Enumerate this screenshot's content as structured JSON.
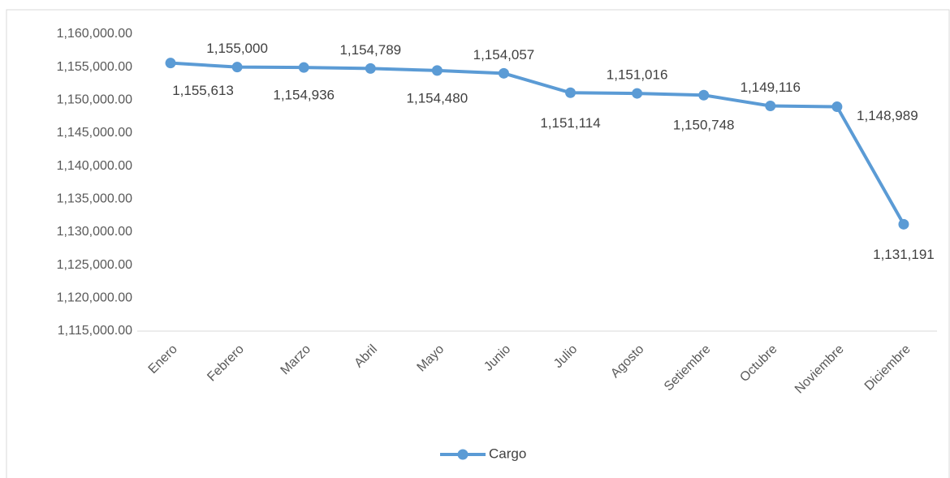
{
  "chart_data": {
    "type": "line",
    "categories": [
      "Enero",
      "Febrero",
      "Marzo",
      "Abril",
      "Mayo",
      "Junio",
      "Julio",
      "Agosto",
      "Setiembre",
      "Octubre",
      "Noviembre",
      "Diciembre"
    ],
    "series": [
      {
        "name": "Cargo",
        "color": "#5b9bd5",
        "values": [
          1155613,
          1155000,
          1154936,
          1154789,
          1154480,
          1154057,
          1151114,
          1151016,
          1150748,
          1149116,
          1148989,
          1131191
        ],
        "value_labels": [
          "1,155,613",
          "1,155,000",
          "1,154,936",
          "1,154,789",
          "1,154,480",
          "1,154,057",
          "1,151,114",
          "1,151,016",
          "1,150,748",
          "1,149,116",
          "1,148,989",
          "1,131,191"
        ]
      }
    ],
    "ylim": [
      1115000,
      1160000
    ],
    "yticks": [
      {
        "value": 1115000,
        "label": "1,115,000.00"
      },
      {
        "value": 1120000,
        "label": "1,120,000.00"
      },
      {
        "value": 1125000,
        "label": "1,125,000.00"
      },
      {
        "value": 1130000,
        "label": "1,130,000.00"
      },
      {
        "value": 1135000,
        "label": "1,135,000.00"
      },
      {
        "value": 1140000,
        "label": "1,140,000.00"
      },
      {
        "value": 1145000,
        "label": "1,145,000.00"
      },
      {
        "value": 1150000,
        "label": "1,150,000.00"
      },
      {
        "value": 1155000,
        "label": "1,155,000.00"
      },
      {
        "value": 1160000,
        "label": "1,160,000.00"
      }
    ],
    "grid": false,
    "legend": "bottom"
  }
}
